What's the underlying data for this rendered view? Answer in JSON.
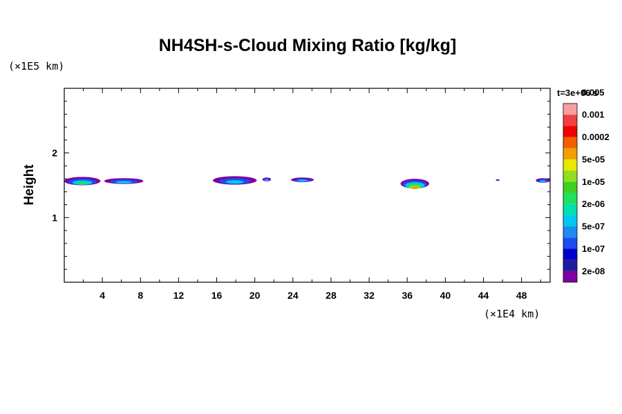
{
  "chart_data": {
    "type": "heatmap",
    "title": "NH4SH-s-Cloud Mixing Ratio [kg/kg]",
    "ylabel": "Height",
    "x_unit": "(×1E4 km)",
    "y_unit": "(×1E5 km)",
    "time_label": "t=3e+06 s",
    "xlim": [
      0,
      51
    ],
    "ylim": [
      0,
      3
    ],
    "x_ticks": [
      4,
      8,
      12,
      16,
      20,
      24,
      28,
      32,
      36,
      40,
      44,
      48
    ],
    "y_ticks": [
      1,
      2
    ],
    "colorbar": {
      "colors": [
        "#7f00a0",
        "#1c1c9c",
        "#0000cc",
        "#1c4cf0",
        "#1c8cf0",
        "#00c8f0",
        "#00e0b0",
        "#20e060",
        "#40d020",
        "#90e020",
        "#e8e800",
        "#f0a000",
        "#f06000",
        "#f00000",
        "#f04040",
        "#f8a0a0"
      ],
      "labels": [
        "2e-08",
        "1e-07",
        "5e-07",
        "2e-06",
        "1e-05",
        "5e-05",
        "0.0002",
        "0.001",
        "0.005"
      ]
    },
    "cloud_blobs": [
      {
        "x0": 0.0,
        "x1": 3.8,
        "ytop": 1.63,
        "ybot": 1.5,
        "core": 1.6
      },
      {
        "x0": 4.2,
        "x1": 8.3,
        "ytop": 1.61,
        "ybot": 1.52,
        "core": 0.6
      },
      {
        "x0": 15.6,
        "x1": 20.2,
        "ytop": 1.64,
        "ybot": 1.51,
        "core": 1.0
      },
      {
        "x0": 20.8,
        "x1": 21.7,
        "ytop": 1.62,
        "ybot": 1.56,
        "core": 0.2
      },
      {
        "x0": 23.8,
        "x1": 26.2,
        "ytop": 1.62,
        "ybot": 1.55,
        "core": 0.3
      },
      {
        "x0": 35.3,
        "x1": 38.3,
        "ytop": 1.6,
        "ybot": 1.45,
        "core": 3.2
      },
      {
        "x0": 45.3,
        "x1": 45.7,
        "ytop": 1.59,
        "ybot": 1.57,
        "core": 0.0
      },
      {
        "x0": 49.5,
        "x1": 51.0,
        "ytop": 1.61,
        "ybot": 1.54,
        "core": 0.4
      }
    ]
  }
}
